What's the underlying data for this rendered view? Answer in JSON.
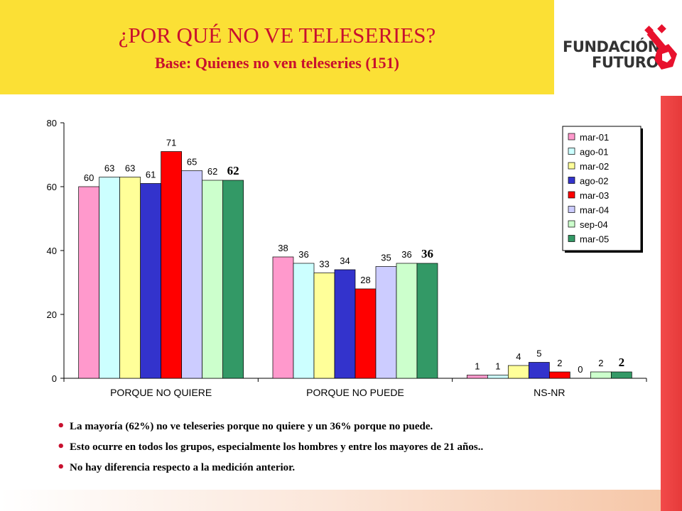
{
  "header": {
    "title": "¿POR QUÉ NO VE TELESERIES?",
    "subtitle": "Base: Quienes no ven teleseries (151)"
  },
  "logo": {
    "line1": "FUNDACIÓN",
    "line2": "FUTURO",
    "icon": "key-icon",
    "color": "#e8112d"
  },
  "colors": {
    "title_bg": "#fbe035",
    "title_text": "#c8102e",
    "accent_band": "#e63a3a"
  },
  "chart_data": {
    "type": "bar",
    "categories": [
      "PORQUE NO QUIERE",
      "PORQUE NO PUEDE",
      "NS-NR"
    ],
    "series": [
      {
        "name": "mar-01",
        "color": "#ff99cc",
        "values": [
          60,
          38,
          1
        ]
      },
      {
        "name": "ago-01",
        "color": "#ccffff",
        "values": [
          63,
          36,
          1
        ]
      },
      {
        "name": "mar-02",
        "color": "#ffff99",
        "values": [
          63,
          33,
          4
        ]
      },
      {
        "name": "ago-02",
        "color": "#3333cc",
        "values": [
          61,
          34,
          5
        ]
      },
      {
        "name": "mar-03",
        "color": "#ff0000",
        "values": [
          71,
          28,
          2
        ]
      },
      {
        "name": "mar-04",
        "color": "#ccccff",
        "values": [
          65,
          35,
          0
        ]
      },
      {
        "name": "sep-04",
        "color": "#ccffcc",
        "values": [
          62,
          36,
          2
        ]
      },
      {
        "name": "mar-05",
        "color": "#339966",
        "values": [
          62,
          36,
          2
        ]
      }
    ],
    "ylim": [
      0,
      80
    ],
    "yticks": [
      0,
      20,
      40,
      60,
      80
    ],
    "legend": "top-right",
    "grid": false,
    "highlight_series": "mar-05"
  },
  "bullets": [
    "La mayoría (62%) no ve teleseries  porque no quiere y un 36% porque no puede.",
    "Esto ocurre en todos los grupos, especialmente los hombres y entre los mayores de 21 años..",
    "No hay diferencia respecto a la medición anterior."
  ],
  "bullet_icon": "bullet-dot-icon"
}
